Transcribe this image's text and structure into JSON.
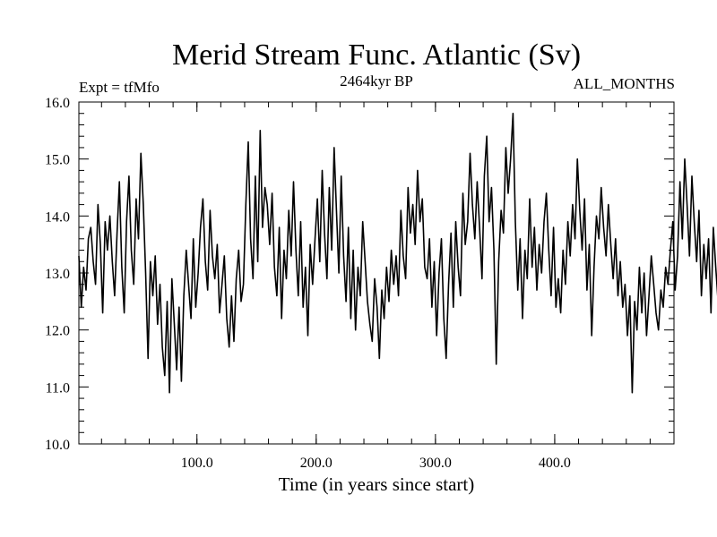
{
  "chart_data": {
    "type": "line",
    "title": "Merid Stream Func. Atlantic (Sv)",
    "subtitle_left": "Expt = tfMfo",
    "subtitle_center": "2464kyr BP",
    "subtitle_right": "ALL_MONTHS",
    "xlabel": "Time (in years since start)",
    "ylabel": "",
    "xlim": [
      1,
      500
    ],
    "ylim": [
      10.0,
      16.0
    ],
    "x_ticks": [
      100,
      200,
      300,
      400
    ],
    "x_tick_labels": [
      "100.0",
      "200.0",
      "300.0",
      "400.0"
    ],
    "y_ticks": [
      10,
      11,
      12,
      13,
      14,
      15,
      16
    ],
    "y_tick_labels": [
      "10.0",
      "11.0",
      "12.0",
      "13.0",
      "14.0",
      "15.0",
      "16.0"
    ],
    "grid": false,
    "series": [
      {
        "name": "Merid Stream Func. Atlantic",
        "color": "#000000",
        "x_start": 1,
        "x_step": 2,
        "values": [
          13.3,
          12.4,
          13.1,
          12.7,
          13.6,
          13.8,
          13.2,
          12.8,
          14.2,
          13.5,
          12.3,
          13.9,
          13.4,
          14.0,
          13.2,
          12.6,
          13.7,
          14.6,
          13.1,
          12.3,
          13.9,
          14.7,
          13.4,
          12.8,
          14.3,
          13.6,
          15.1,
          14.2,
          13.0,
          11.5,
          13.2,
          12.6,
          13.3,
          12.1,
          12.8,
          11.7,
          11.2,
          12.5,
          10.9,
          12.9,
          12.1,
          11.3,
          12.4,
          11.1,
          12.6,
          13.4,
          12.8,
          12.2,
          13.6,
          12.4,
          13.0,
          13.8,
          14.3,
          13.2,
          12.7,
          14.1,
          13.3,
          12.9,
          13.5,
          12.3,
          12.8,
          13.3,
          12.2,
          11.7,
          12.6,
          11.8,
          12.9,
          13.4,
          12.5,
          12.8,
          14.2,
          15.3,
          13.6,
          12.9,
          14.7,
          13.2,
          15.5,
          13.8,
          14.5,
          14.2,
          13.5,
          14.4,
          13.1,
          12.6,
          13.8,
          12.2,
          13.4,
          12.9,
          14.1,
          13.3,
          14.6,
          13.4,
          12.6,
          13.9,
          12.4,
          13.1,
          11.9,
          13.5,
          12.8,
          13.6,
          14.3,
          13.2,
          14.8,
          13.7,
          12.9,
          14.5,
          13.4,
          15.2,
          14.1,
          13.0,
          14.7,
          13.3,
          12.5,
          13.8,
          12.2,
          13.4,
          12.0,
          13.1,
          12.6,
          13.9,
          13.2,
          12.5,
          12.1,
          11.8,
          12.9,
          12.4,
          11.5,
          12.7,
          12.2,
          13.1,
          12.5,
          13.4,
          12.8,
          13.3,
          12.6,
          14.1,
          13.3,
          12.9,
          14.5,
          13.7,
          14.2,
          13.5,
          14.8,
          13.9,
          14.3,
          13.1,
          12.9,
          13.6,
          12.4,
          13.2,
          11.9,
          13.0,
          13.6,
          12.2,
          11.5,
          12.8,
          13.7,
          12.4,
          13.9,
          13.1,
          12.6,
          14.4,
          13.5,
          13.9,
          15.1,
          14.2,
          13.6,
          14.6,
          13.8,
          12.9,
          14.7,
          15.4,
          13.9,
          14.5,
          13.4,
          11.4,
          13.2,
          14.1,
          13.7,
          15.2,
          14.4,
          15.0,
          15.8,
          13.9,
          12.7,
          13.6,
          12.2,
          13.4,
          12.9,
          14.3,
          13.1,
          13.8,
          12.7,
          13.5,
          13.0,
          13.9,
          14.4,
          13.4,
          12.6,
          13.8,
          12.4,
          12.9,
          12.3,
          13.4,
          12.8,
          13.9,
          13.3,
          14.2,
          13.6,
          15.0,
          14.1,
          13.4,
          14.3,
          12.7,
          13.5,
          11.9,
          13.1,
          14.0,
          13.6,
          14.5,
          13.8,
          13.3,
          14.2,
          13.5,
          12.9,
          13.6,
          12.6,
          13.2,
          12.4,
          12.8,
          11.9,
          12.6,
          10.9,
          12.5,
          12.0,
          13.1,
          12.3,
          13.0,
          11.9,
          12.6,
          13.3,
          12.8,
          12.3,
          12.0,
          12.7,
          12.4,
          13.1,
          12.8,
          13.4,
          13.9,
          12.7,
          13.3,
          14.6,
          13.6,
          15.0,
          14.2,
          13.3,
          14.7,
          13.9,
          13.2,
          14.1,
          12.6,
          13.5,
          12.9,
          13.6,
          12.3,
          13.8,
          13.1,
          12.5,
          13.3,
          13.7,
          12.7,
          13.4,
          14.3,
          13.6,
          13.0,
          12.6,
          13.3,
          13.8,
          12.9,
          13.4,
          12.2,
          13.6,
          12.8,
          13.2,
          11.8,
          13.4,
          12.7,
          13.1,
          12.6,
          14.5,
          13.7,
          14.9,
          13.6,
          14.7,
          13.9,
          14.4,
          13.2,
          14.9,
          14.1,
          13.3,
          14.6,
          13.9,
          14.3,
          13.6,
          15.0,
          14.2,
          14.7,
          13.5,
          14.1,
          15.3,
          14.3,
          14.8,
          13.6,
          15.1,
          14.4,
          13.9,
          14.6,
          15.0,
          13.8,
          14.5,
          15.6,
          14.2,
          13.5,
          14.8,
          13.6,
          15.2,
          14.3,
          14.9,
          13.8,
          15.3,
          14.6,
          15.0,
          14.1,
          13.5,
          14.4,
          13.9,
          14.8,
          13.7,
          14.2,
          13.6,
          12.9,
          14.4,
          13.5,
          14.1,
          12.6,
          14.5,
          13.4,
          12.8,
          14.0,
          13.3,
          14.6,
          13.5,
          14.2,
          13.1,
          12.3,
          13.4,
          12.8,
          13.0,
          12.5,
          12.9,
          12.1,
          12.6,
          11.3,
          13.2,
          12.6,
          14.0,
          13.4,
          12.4,
          13.2,
          14.1,
          13.5,
          13.0,
          14.3,
          12.5,
          13.8,
          12.9,
          13.4,
          12.3,
          13.6,
          14.1,
          13.3,
          12.9,
          13.5,
          14.3,
          13.2,
          12.7,
          13.8,
          12.4,
          13.1,
          12.9,
          14.2,
          13.4,
          12.6,
          13.7,
          14.0,
          12.8,
          13.3,
          12.6,
          13.0
        ]
      }
    ]
  }
}
